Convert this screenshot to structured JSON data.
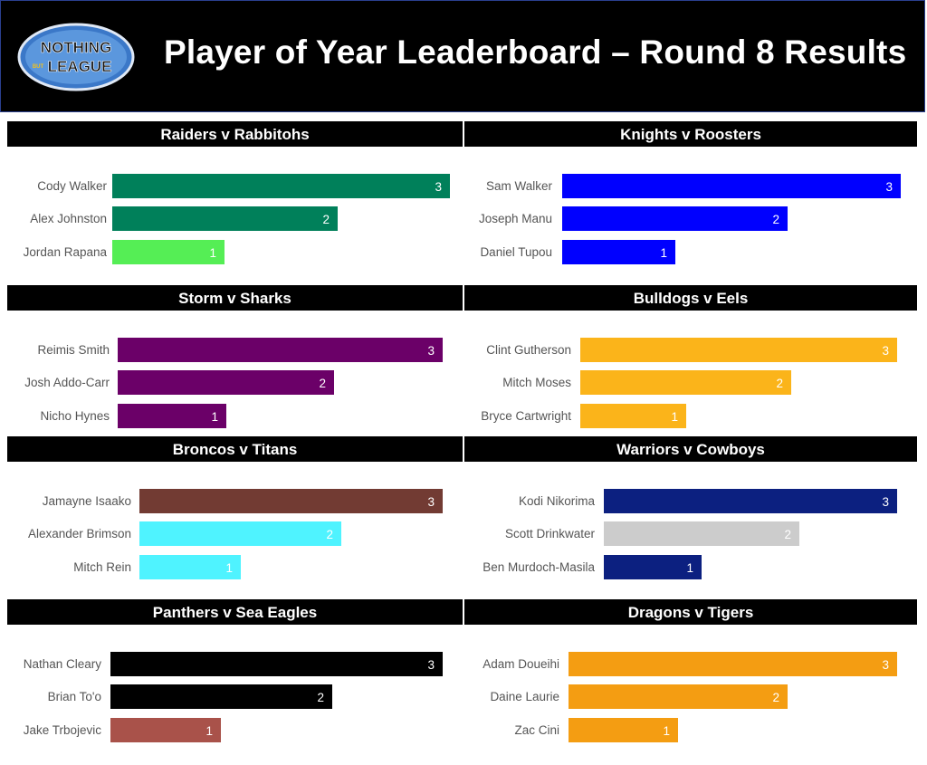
{
  "header": {
    "title": "Player of Year Leaderboard – Round 8 Results",
    "logo_text_top": "NOTHING",
    "logo_text_mid": "BUT",
    "logo_text_bottom": "LEAGUE"
  },
  "chart_data": [
    {
      "type": "bar",
      "orientation": "horizontal",
      "title": "Raiders v Rabbitohs",
      "categories": [
        "Cody Walker",
        "Alex Johnston",
        "Jordan Rapana"
      ],
      "values": [
        3,
        2,
        1
      ],
      "colors": [
        "#00805a",
        "#00805a",
        "#55ee55"
      ]
    },
    {
      "type": "bar",
      "orientation": "horizontal",
      "title": "Knights v Roosters",
      "categories": [
        "Sam Walker",
        "Joseph Manu",
        "Daniel Tupou"
      ],
      "values": [
        3,
        2,
        1
      ],
      "colors": [
        "#0000ff",
        "#0000ff",
        "#0000ff"
      ]
    },
    {
      "type": "bar",
      "orientation": "horizontal",
      "title": "Storm v Sharks",
      "categories": [
        "Reimis Smith",
        "Josh Addo-Carr",
        "Nicho Hynes"
      ],
      "values": [
        3,
        2,
        1
      ],
      "colors": [
        "#6b0068",
        "#6b0068",
        "#6b0068"
      ]
    },
    {
      "type": "bar",
      "orientation": "horizontal",
      "title": "Bulldogs v Eels",
      "categories": [
        "Clint Gutherson",
        "Mitch Moses",
        "Bryce Cartwright"
      ],
      "values": [
        3,
        2,
        1
      ],
      "colors": [
        "#fbb41a",
        "#fbb41a",
        "#fbb41a"
      ]
    },
    {
      "type": "bar",
      "orientation": "horizontal",
      "title": "Broncos v Titans",
      "categories": [
        "Jamayne Isaako",
        "Alexander Brimson",
        "Mitch Rein"
      ],
      "values": [
        3,
        2,
        1
      ],
      "colors": [
        "#723b33",
        "#4ff3ff",
        "#4ff3ff"
      ]
    },
    {
      "type": "bar",
      "orientation": "horizontal",
      "title": "Warriors v Cowboys",
      "categories": [
        "Kodi Nikorima",
        "Scott Drinkwater",
        "Ben Murdoch-Masila"
      ],
      "values": [
        3,
        2,
        1
      ],
      "colors": [
        "#0c2080",
        "#cccccc",
        "#0c2080"
      ]
    },
    {
      "type": "bar",
      "orientation": "horizontal",
      "title": "Panthers v Sea Eagles",
      "categories": [
        "Nathan Cleary",
        "Brian To'o",
        "Jake Trbojevic"
      ],
      "values": [
        3,
        2,
        1
      ],
      "colors": [
        "#000000",
        "#000000",
        "#a9524a"
      ]
    },
    {
      "type": "bar",
      "orientation": "horizontal",
      "title": "Dragons v Tigers",
      "categories": [
        "Adam Doueihi",
        "Daine Laurie",
        "Zac Cini"
      ],
      "values": [
        3,
        2,
        1
      ],
      "colors": [
        "#f49d12",
        "#f49d12",
        "#f49d12"
      ]
    }
  ]
}
